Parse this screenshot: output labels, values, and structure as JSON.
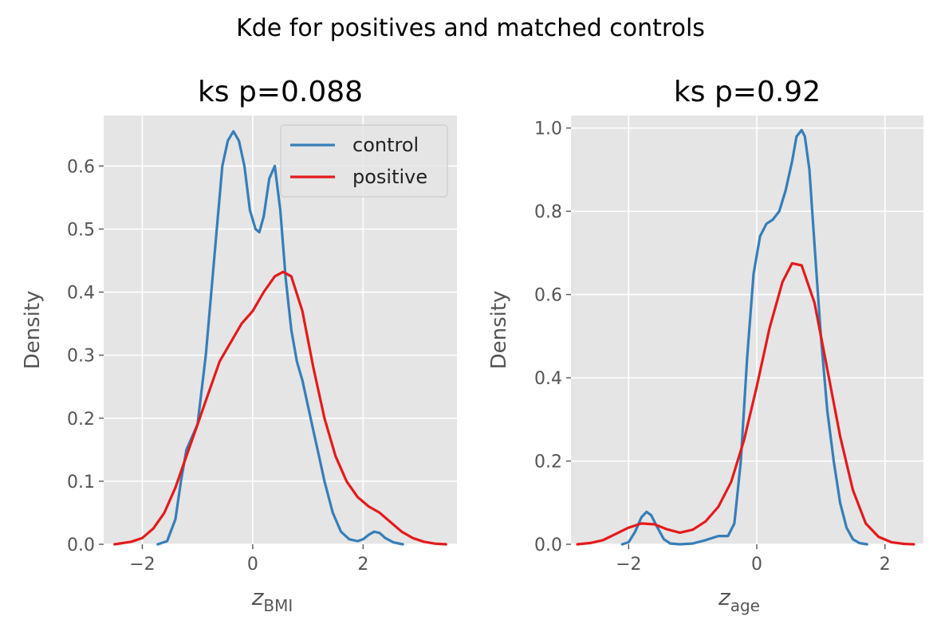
{
  "suptitle": "Kde for positives and matched controls",
  "colors": {
    "control": "#377eb8",
    "positive": "#e41a1c",
    "panel_bg": "#e5e5e5",
    "grid": "#ffffff"
  },
  "chart_data": [
    {
      "type": "line",
      "title": "ks p=0.088",
      "xlabel_main": "z",
      "xlabel_sub": "BMI",
      "ylabel": "Density",
      "xlim": [
        -2.7,
        3.7
      ],
      "ylim": [
        0,
        0.68
      ],
      "xticks": [
        -2,
        0,
        2
      ],
      "xtick_labels": [
        "−2",
        "0",
        "2"
      ],
      "yticks": [
        0.0,
        0.1,
        0.2,
        0.3,
        0.4,
        0.5,
        0.6
      ],
      "ytick_labels": [
        "0.0",
        "0.1",
        "0.2",
        "0.3",
        "0.4",
        "0.5",
        "0.6"
      ],
      "grid": true,
      "legend": {
        "position": "top-right",
        "entries": [
          "control",
          "positive"
        ]
      },
      "series": [
        {
          "name": "control",
          "color": "#377eb8",
          "x": [
            -1.72,
            -1.55,
            -1.4,
            -1.3,
            -1.2,
            -1.0,
            -0.85,
            -0.7,
            -0.55,
            -0.45,
            -0.35,
            -0.25,
            -0.15,
            -0.05,
            0.05,
            0.12,
            0.2,
            0.3,
            0.4,
            0.5,
            0.6,
            0.7,
            0.8,
            0.9,
            1.0,
            1.1,
            1.2,
            1.3,
            1.45,
            1.6,
            1.75,
            1.9,
            2.0,
            2.1,
            2.2,
            2.3,
            2.4,
            2.55,
            2.72
          ],
          "y": [
            0.0,
            0.005,
            0.04,
            0.1,
            0.15,
            0.19,
            0.3,
            0.45,
            0.6,
            0.64,
            0.655,
            0.64,
            0.6,
            0.53,
            0.5,
            0.495,
            0.52,
            0.58,
            0.6,
            0.53,
            0.42,
            0.34,
            0.29,
            0.26,
            0.22,
            0.18,
            0.14,
            0.1,
            0.05,
            0.02,
            0.008,
            0.005,
            0.008,
            0.015,
            0.02,
            0.018,
            0.01,
            0.003,
            0.0
          ]
        },
        {
          "name": "positive",
          "color": "#e41a1c",
          "x": [
            -2.5,
            -2.2,
            -2.0,
            -1.8,
            -1.6,
            -1.4,
            -1.2,
            -1.0,
            -0.8,
            -0.6,
            -0.4,
            -0.2,
            0.0,
            0.2,
            0.4,
            0.55,
            0.7,
            0.9,
            1.1,
            1.3,
            1.5,
            1.7,
            1.9,
            2.1,
            2.3,
            2.5,
            2.7,
            2.9,
            3.1,
            3.3,
            3.5
          ],
          "y": [
            0.0,
            0.004,
            0.01,
            0.025,
            0.05,
            0.09,
            0.14,
            0.19,
            0.24,
            0.29,
            0.32,
            0.35,
            0.37,
            0.4,
            0.425,
            0.432,
            0.425,
            0.37,
            0.28,
            0.2,
            0.14,
            0.1,
            0.075,
            0.06,
            0.05,
            0.035,
            0.02,
            0.01,
            0.004,
            0.001,
            0.0
          ]
        }
      ]
    },
    {
      "type": "line",
      "title": "ks p=0.92",
      "xlabel_main": "z",
      "xlabel_sub": "age",
      "ylabel": "Density",
      "xlim": [
        -2.9,
        2.6
      ],
      "ylim": [
        0,
        1.03
      ],
      "xticks": [
        -2,
        0,
        2
      ],
      "xtick_labels": [
        "−2",
        "0",
        "2"
      ],
      "yticks": [
        0.0,
        0.2,
        0.4,
        0.6,
        0.8,
        1.0
      ],
      "ytick_labels": [
        "0.0",
        "0.2",
        "0.4",
        "0.6",
        "0.8",
        "1.0"
      ],
      "grid": true,
      "series": [
        {
          "name": "control",
          "color": "#377eb8",
          "x": [
            -2.1,
            -2.0,
            -1.9,
            -1.8,
            -1.72,
            -1.65,
            -1.55,
            -1.45,
            -1.35,
            -1.2,
            -1.0,
            -0.8,
            -0.6,
            -0.45,
            -0.35,
            -0.25,
            -0.15,
            -0.05,
            0.05,
            0.15,
            0.25,
            0.35,
            0.45,
            0.55,
            0.62,
            0.7,
            0.75,
            0.82,
            0.9,
            1.0,
            1.1,
            1.2,
            1.3,
            1.4,
            1.5,
            1.6,
            1.72
          ],
          "y": [
            0.0,
            0.005,
            0.03,
            0.065,
            0.078,
            0.07,
            0.04,
            0.012,
            0.002,
            0.0,
            0.002,
            0.01,
            0.02,
            0.02,
            0.05,
            0.2,
            0.45,
            0.65,
            0.74,
            0.77,
            0.78,
            0.8,
            0.85,
            0.92,
            0.98,
            0.995,
            0.98,
            0.9,
            0.72,
            0.5,
            0.32,
            0.2,
            0.1,
            0.04,
            0.012,
            0.003,
            0.0
          ]
        },
        {
          "name": "positive",
          "color": "#e41a1c",
          "x": [
            -2.8,
            -2.6,
            -2.4,
            -2.2,
            -2.0,
            -1.8,
            -1.6,
            -1.4,
            -1.2,
            -1.0,
            -0.8,
            -0.6,
            -0.4,
            -0.2,
            0.0,
            0.2,
            0.4,
            0.55,
            0.7,
            0.9,
            1.1,
            1.3,
            1.5,
            1.7,
            1.9,
            2.1,
            2.3,
            2.45
          ],
          "y": [
            0.0,
            0.003,
            0.01,
            0.025,
            0.04,
            0.05,
            0.048,
            0.036,
            0.028,
            0.035,
            0.055,
            0.09,
            0.15,
            0.25,
            0.38,
            0.52,
            0.63,
            0.675,
            0.67,
            0.58,
            0.42,
            0.26,
            0.13,
            0.05,
            0.018,
            0.005,
            0.001,
            0.0
          ]
        }
      ]
    }
  ]
}
